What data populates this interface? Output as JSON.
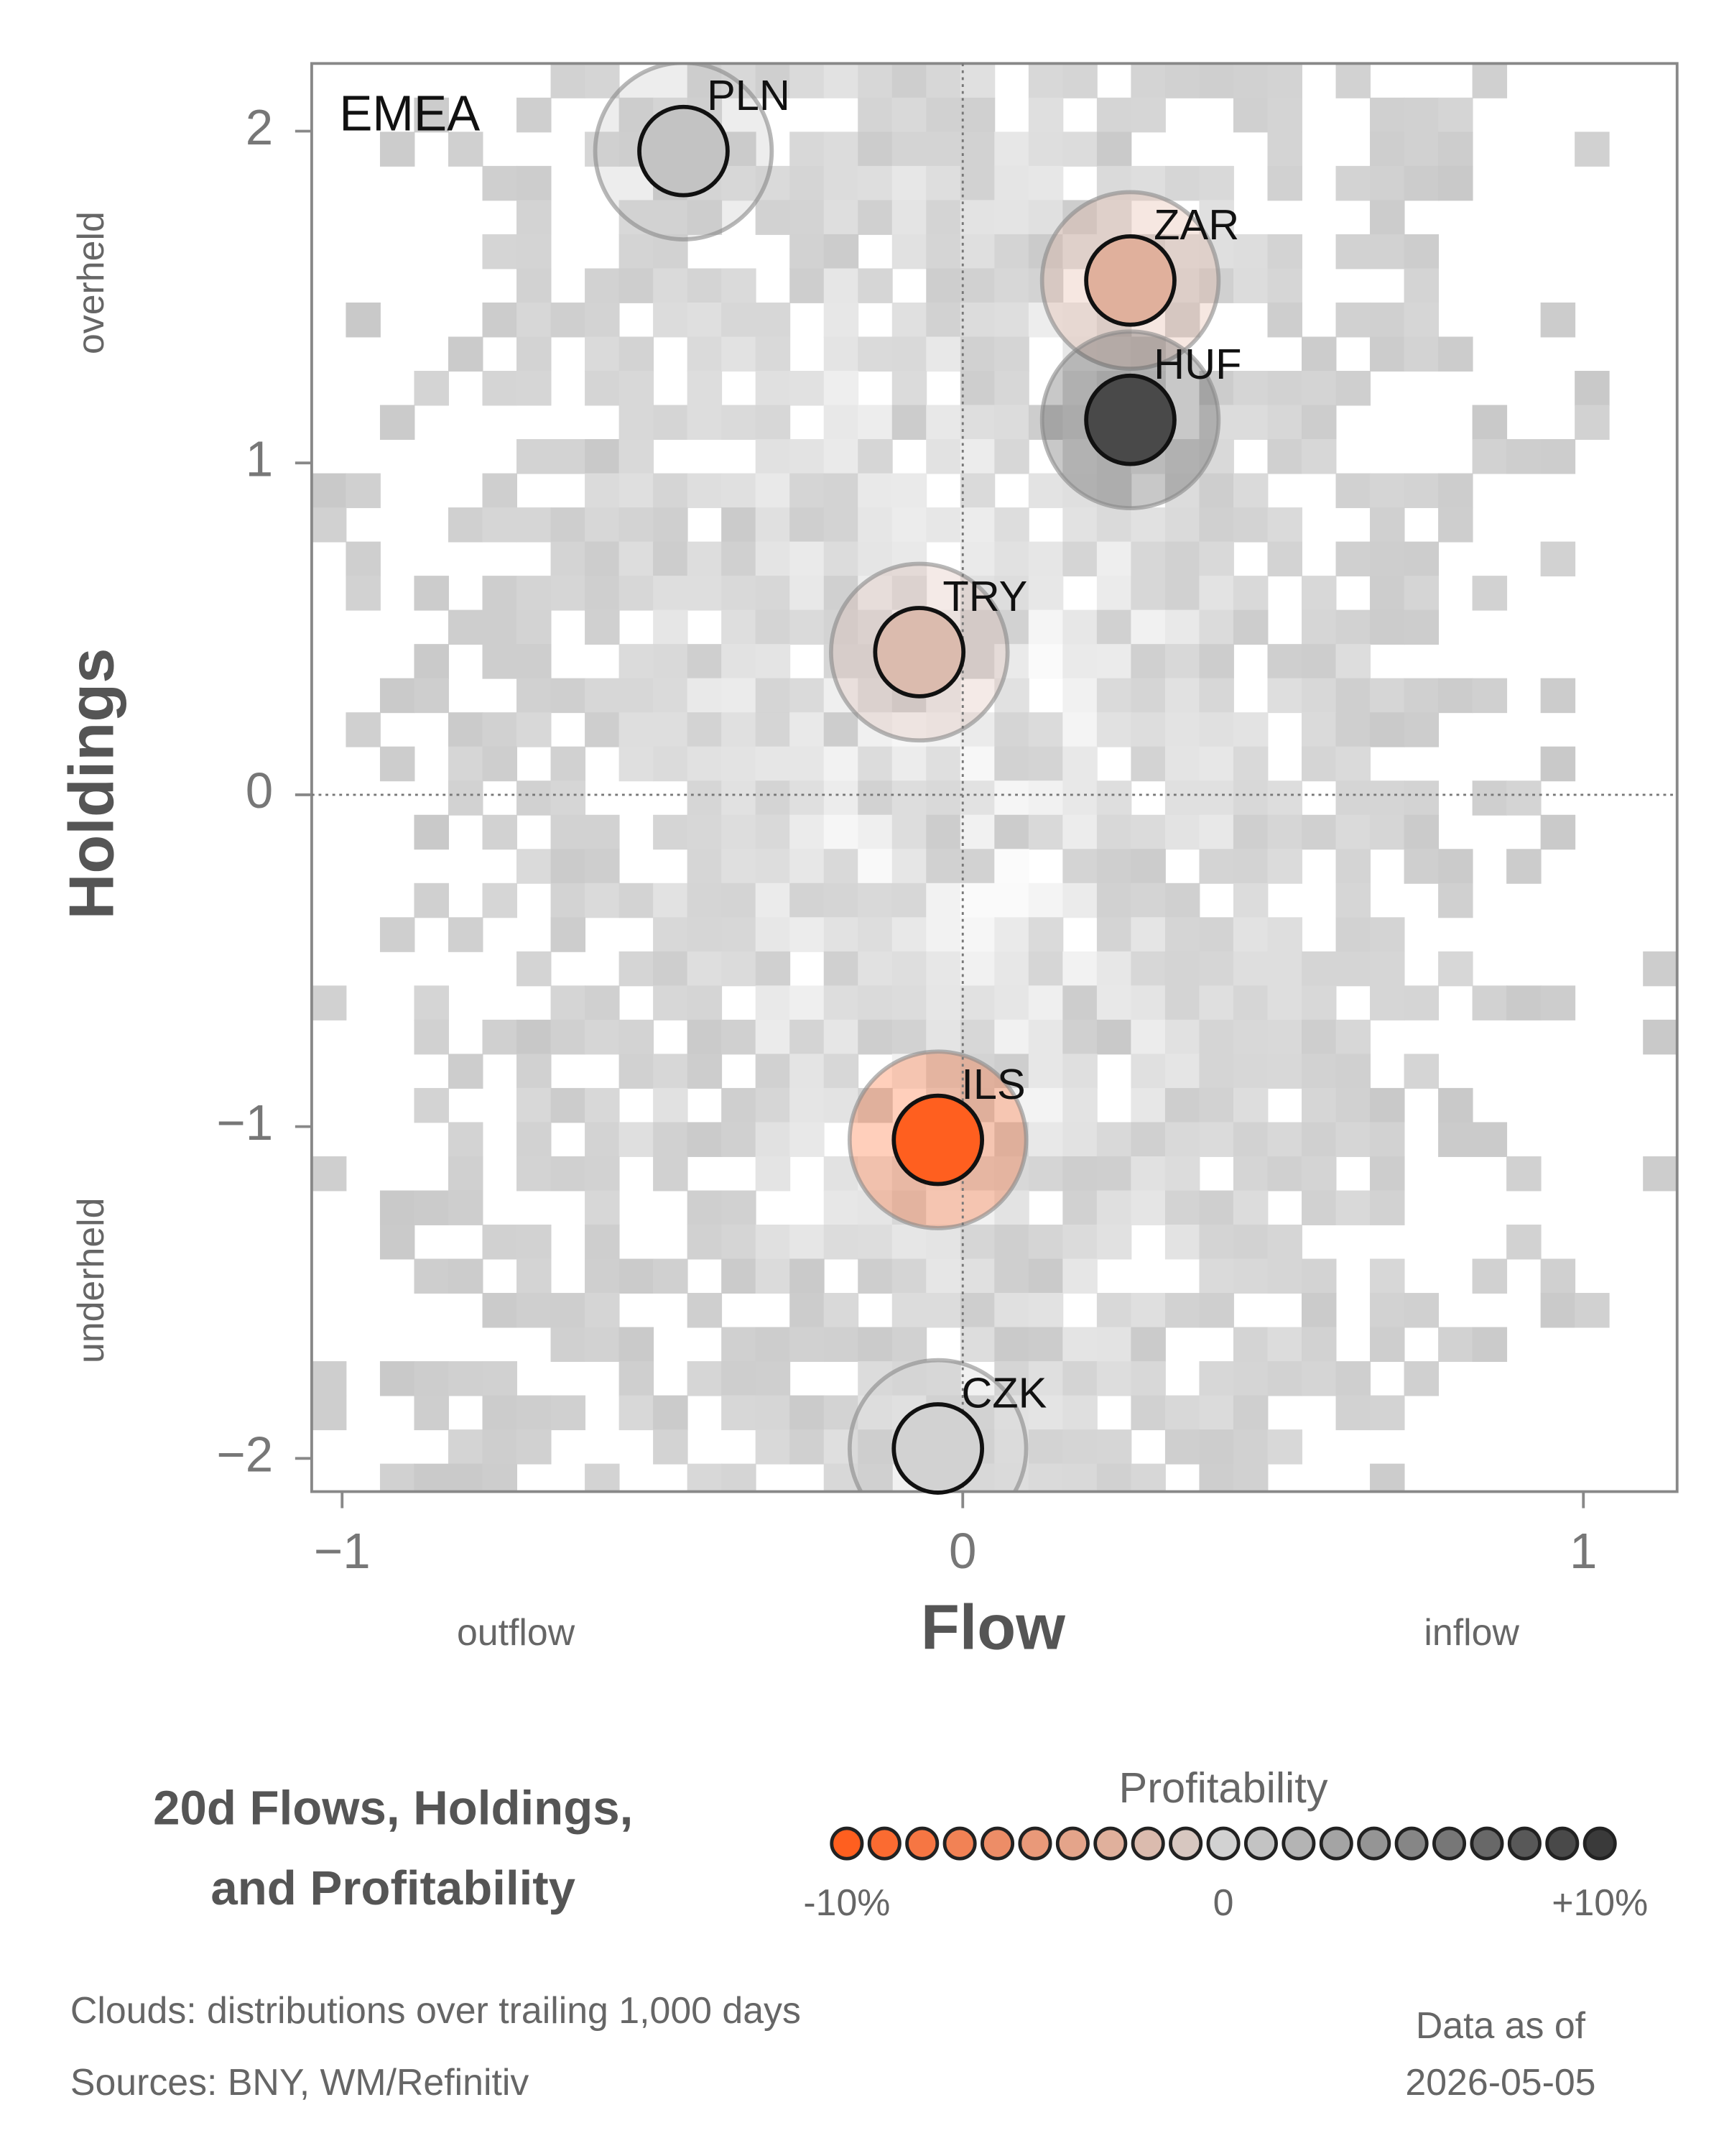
{
  "chart_data": {
    "type": "bubble",
    "panel_label": "EMEA",
    "x_label": "Flow",
    "y_label": "Holdings",
    "x_low_label": "outflow",
    "x_high_label": "inflow",
    "y_high_label": "overheld",
    "y_low_label": "underheld",
    "title_lines": [
      "20d Flows, Holdings,",
      "and Profitability"
    ],
    "xlim": [
      -1.049,
      1.151
    ],
    "ylim": [
      -2.1,
      2.204
    ],
    "xticks": [
      {
        "value": -1,
        "label": "−1"
      },
      0,
      1
    ],
    "yticks": [
      {
        "value": -2,
        "label": "−2"
      },
      {
        "value": -1,
        "label": "−1"
      },
      0,
      1,
      2
    ],
    "points": [
      {
        "label": "PLN",
        "x": -0.45,
        "y": 1.94,
        "profitability": 1
      },
      {
        "label": "ZAR",
        "x": 0.27,
        "y": 1.55,
        "profitability": -3
      },
      {
        "label": "HUF",
        "x": 0.27,
        "y": 1.13,
        "profitability": 9
      },
      {
        "label": "TRY",
        "x": -0.07,
        "y": 0.43,
        "profitability": -2
      },
      {
        "label": "ILS",
        "x": -0.04,
        "y": -1.04,
        "profitability": -10
      },
      {
        "label": "CZK",
        "x": -0.04,
        "y": -1.97,
        "profitability": 0
      }
    ],
    "colorbar": {
      "label": "Profitability",
      "lim": [
        -10,
        10
      ],
      "ticks": [
        {
          "value": -10,
          "label": "-10%"
        },
        0,
        {
          "value": 10,
          "label": "+10%"
        }
      ],
      "colors": [
        "#ff5f1f",
        "#d2d2d2",
        "#3a3a3a"
      ]
    },
    "footnotes": [
      "Clouds:  distributions over trailing 1,000 days",
      "Sources:  BNY, WM/Refinitiv"
    ],
    "date_caption": [
      "Data as of",
      "2026-05-05"
    ]
  }
}
